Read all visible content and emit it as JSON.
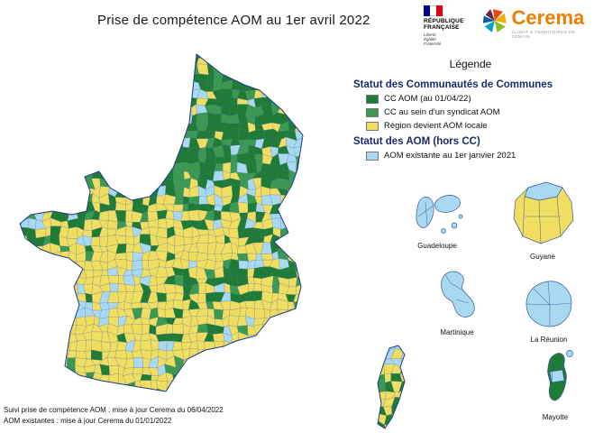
{
  "header": {
    "title": "Prise de compétence AOM au 1er avril 2022",
    "republique": {
      "line1": "RÉPUBLIQUE",
      "line2": "FRANÇAISE",
      "motto": "Liberté\nÉgalité\nFraternité"
    },
    "cerema": {
      "name": "Cerema",
      "tagline": "CLIMAT & TERRITOIRES DE DEMAIN"
    }
  },
  "legend": {
    "title": "Légende",
    "sections": [
      {
        "heading": "Statut des Communautés de Communes",
        "items": [
          {
            "label": "CC AOM (au 01/04/22)",
            "color": "#1e7c34"
          },
          {
            "label": "CC au sein d'un syndicat AOM",
            "color": "#3c9a50"
          },
          {
            "label": "Région devient AOM locale",
            "color": "#f0de60"
          }
        ]
      },
      {
        "heading": "Statut des AOM (hors CC)",
        "items": [
          {
            "label": "AOM existante au 1er janvier 2021",
            "color": "#a9d9f0"
          }
        ]
      }
    ]
  },
  "territories": [
    {
      "name": "Guadeloupe"
    },
    {
      "name": "Guyane"
    },
    {
      "name": "Martinique"
    },
    {
      "name": "La Réunion"
    },
    {
      "name": "Mayotte"
    }
  ],
  "footer": {
    "line1": "Suivi prise de compétence AOM : mise à jour Cerema du 06/04/2022",
    "line2": "AOM existantes : mise à jour Cerema du 01/01/2022"
  },
  "map": {
    "colors": {
      "green1": "#1e7c34",
      "green2": "#3c9a50",
      "yellow": "#f0de60",
      "blue": "#a9d9f0",
      "border": "#3a57a0",
      "outline": "#1d3c8c"
    }
  }
}
